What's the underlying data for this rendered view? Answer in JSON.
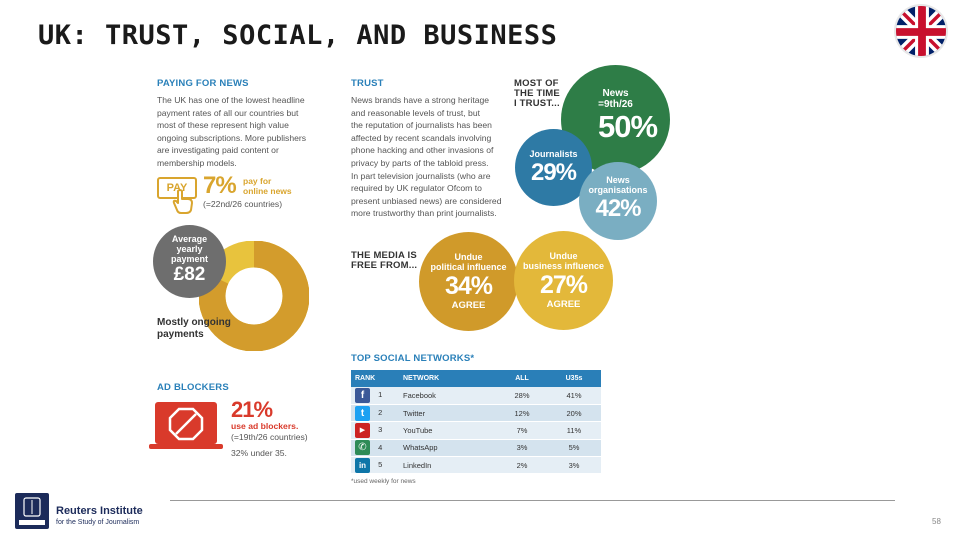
{
  "title": "UK: TRUST, SOCIAL, AND BUSINESS",
  "paying": {
    "heading": "PAYING FOR NEWS",
    "lines": [
      "The UK has one of the lowest headline",
      "payment rates of all our countries but",
      "most of these represent high value",
      "ongoing subscriptions. More publishers",
      "are investigating paid content or",
      "membership models."
    ],
    "pay_label": "PAY",
    "stat": "7%",
    "stat_lines": [
      "pay for",
      "online news"
    ],
    "rank_note": "(=22nd/26 countries)",
    "avg_label_lines": [
      "Average",
      "yearly",
      "payment"
    ],
    "avg_value": "£82",
    "donut_share": 0.82,
    "donut_lines": [
      "Mostly ongoing",
      "payments"
    ]
  },
  "adblock": {
    "heading": "AD BLOCKERS",
    "stat": "21%",
    "stat_lines": [
      "use ad blockers."
    ],
    "rank_note": "(=19th/26 countries)",
    "under35": "32% under 35."
  },
  "trust": {
    "heading": "TRUST",
    "lines": [
      "News brands have a strong heritage",
      "and reasonable levels of trust, but",
      "the reputation of journalists has been",
      "affected by recent scandals involving",
      "phone hacking and other invasions of",
      "privacy by parts of the tabloid press.",
      "In part television journalists (who are",
      "required by UK regulator Ofcom to",
      "present unbiased news) are considered",
      "more trustworthy than print journalists."
    ],
    "most_time_lines": [
      "MOST OF",
      "THE TIME",
      "I TRUST..."
    ],
    "bubbles": [
      {
        "label_lines": [
          "News",
          "=9th/26"
        ],
        "value": "50%",
        "color": "#2e7d47"
      },
      {
        "label_lines": [
          "Journalists"
        ],
        "value": "29%",
        "color": "#2e7aa5"
      },
      {
        "label_lines": [
          "News",
          "organisations"
        ],
        "value": "42%",
        "color": "#7aaec2"
      }
    ]
  },
  "media_free": {
    "heading_lines": [
      "THE MEDIA IS",
      "FREE FROM..."
    ],
    "bubbles": [
      {
        "label_lines": [
          "Undue",
          "political influence"
        ],
        "value": "34%",
        "sub": "AGREE",
        "color": "#d09a2a"
      },
      {
        "label_lines": [
          "Undue",
          "business influence"
        ],
        "value": "27%",
        "sub": "AGREE",
        "color": "#e3b83a"
      }
    ]
  },
  "social": {
    "heading": "TOP SOCIAL NETWORKS*",
    "columns": [
      "RANK",
      "NETWORK",
      "ALL",
      "U35s"
    ],
    "rows": [
      {
        "icon": "f",
        "rank": "1",
        "network": "Facebook",
        "all": "28%",
        "u35": "41%",
        "color": "#3b5998"
      },
      {
        "icon": "t",
        "rank": "2",
        "network": "Twitter",
        "all": "12%",
        "u35": "20%",
        "color": "#1da1f2"
      },
      {
        "icon": "▶",
        "rank": "3",
        "network": "YouTube",
        "all": "7%",
        "u35": "11%",
        "color": "#cc2222"
      },
      {
        "icon": "✆",
        "rank": "4",
        "network": "WhatsApp",
        "all": "3%",
        "u35": "5%",
        "color": "#2e8b57"
      },
      {
        "icon": "in",
        "rank": "5",
        "network": "LinkedIn",
        "all": "2%",
        "u35": "3%",
        "color": "#0e76a8"
      }
    ],
    "footnote": "*used weekly for news"
  },
  "footer": {
    "logo_name": "Reuters Institute",
    "logo_sub": "for the Study of Journalism",
    "page_number": "58"
  },
  "colors": {
    "blue": "#2a80b9",
    "gold": "#d9a52e",
    "red": "#d93a2b",
    "green": "#2e7d47"
  }
}
